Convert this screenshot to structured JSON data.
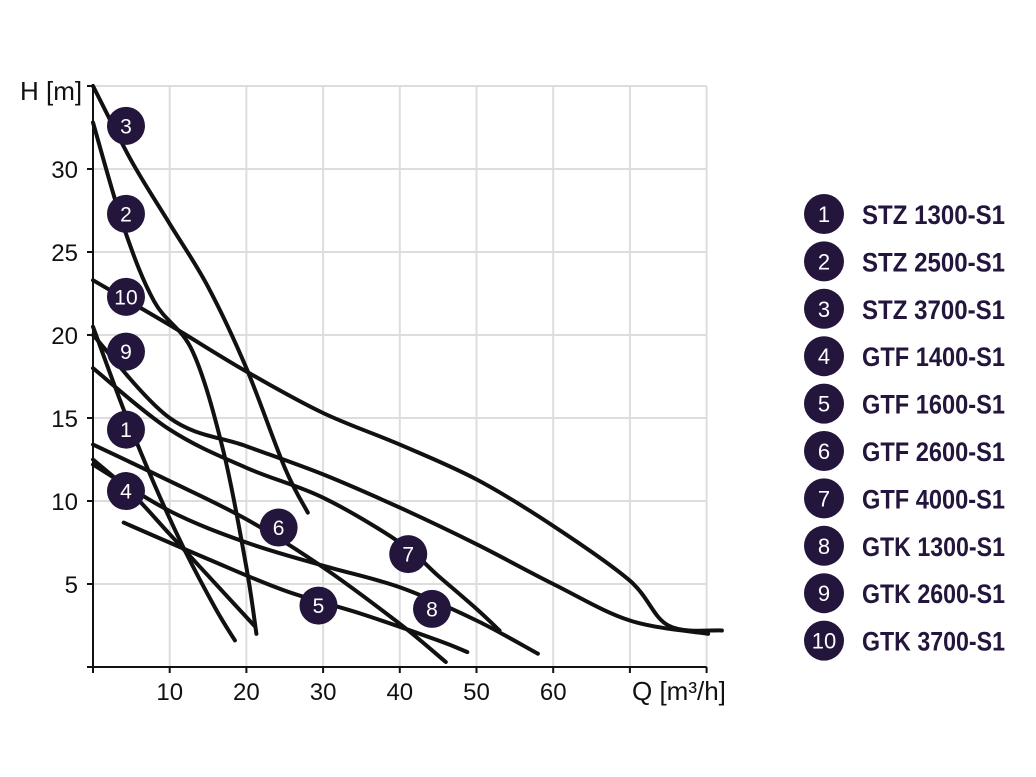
{
  "chart_data": {
    "type": "line",
    "xlabel": "Q [m³/h]",
    "ylabel": "H [m]",
    "xlim": [
      0,
      80
    ],
    "ylim": [
      0,
      35
    ],
    "xticks": [
      10,
      20,
      30,
      40,
      50,
      60
    ],
    "yticks": [
      5,
      10,
      15,
      20,
      25,
      30
    ],
    "grid": true,
    "legend_position": "right",
    "colors": {
      "line": "#111111",
      "marker": "#23153c",
      "grid": "#dddddd",
      "legend_text": "#23153c"
    },
    "series": [
      {
        "id": "1",
        "name": "STZ 1300-S1",
        "x": [
          0,
          4,
          8,
          12,
          16,
          18.5
        ],
        "y": [
          20.5,
          15.5,
          11,
          7,
          3.5,
          1.6
        ],
        "marker": {
          "x": 4.3,
          "y": 14.3
        }
      },
      {
        "id": "2",
        "name": "STZ 2500-S1",
        "x": [
          0,
          4,
          8,
          13,
          17,
          20,
          21.3
        ],
        "y": [
          32.8,
          26.5,
          22,
          19,
          13,
          6,
          2
        ],
        "marker": {
          "x": 4.3,
          "y": 27.3
        }
      },
      {
        "id": "3",
        "name": "STZ 3700-S1",
        "x": [
          0,
          5,
          10,
          15,
          20,
          25,
          28
        ],
        "y": [
          35,
          30.5,
          26.7,
          22.9,
          18,
          12,
          9.3
        ],
        "marker": {
          "x": 4.3,
          "y": 32.6
        }
      },
      {
        "id": "4",
        "name": "GTF 1400-S1",
        "x": [
          0,
          5,
          10,
          15,
          21
        ],
        "y": [
          12.5,
          10.5,
          8,
          5.5,
          2.5
        ],
        "marker": {
          "x": 4.3,
          "y": 10.6
        }
      },
      {
        "id": "5",
        "name": "GTF 1600-S1",
        "x": [
          4,
          15,
          25,
          35,
          45,
          48.8
        ],
        "y": [
          8.7,
          6.5,
          4.6,
          3.2,
          1.6,
          0.9
        ],
        "marker": {
          "x": 29.4,
          "y": 3.7
        }
      },
      {
        "id": "6",
        "name": "GTF 2600-S1",
        "x": [
          0,
          10,
          20,
          30,
          40,
          46
        ],
        "y": [
          13.4,
          11.2,
          8.9,
          6,
          2.6,
          0.3
        ],
        "marker": {
          "x": 24.2,
          "y": 8.4
        }
      },
      {
        "id": "7",
        "name": "GTF 4000-S1",
        "x": [
          0,
          10,
          20,
          30,
          40,
          45,
          50,
          53
        ],
        "y": [
          18,
          14.3,
          12,
          10.2,
          7.5,
          5.5,
          3.5,
          2.2
        ],
        "marker": {
          "x": 41.1,
          "y": 6.8
        }
      },
      {
        "id": "8",
        "name": "GTK 1300-S1",
        "x": [
          0,
          10,
          20,
          30,
          40,
          50,
          58
        ],
        "y": [
          12.2,
          9.4,
          7.5,
          6.1,
          4.8,
          2.8,
          0.8
        ],
        "marker": {
          "x": 44.2,
          "y": 3.5
        }
      },
      {
        "id": "9",
        "name": "GTK 2600-S1",
        "x": [
          0,
          10,
          20,
          30,
          40,
          50,
          60,
          70,
          80.2
        ],
        "y": [
          20,
          15,
          13.3,
          11.6,
          9.6,
          7.4,
          5,
          2.8,
          2
        ],
        "marker": {
          "x": 4.3,
          "y": 19
        }
      },
      {
        "id": "10",
        "name": "GTK 3700-S1",
        "x": [
          0,
          10,
          20,
          30,
          40,
          50,
          60,
          70,
          75,
          82
        ],
        "y": [
          23.3,
          20.6,
          17.8,
          15.3,
          13.4,
          11.3,
          8.5,
          5.2,
          2.5,
          2.2
        ],
        "marker": {
          "x": 4.3,
          "y": 22.3
        }
      }
    ]
  }
}
